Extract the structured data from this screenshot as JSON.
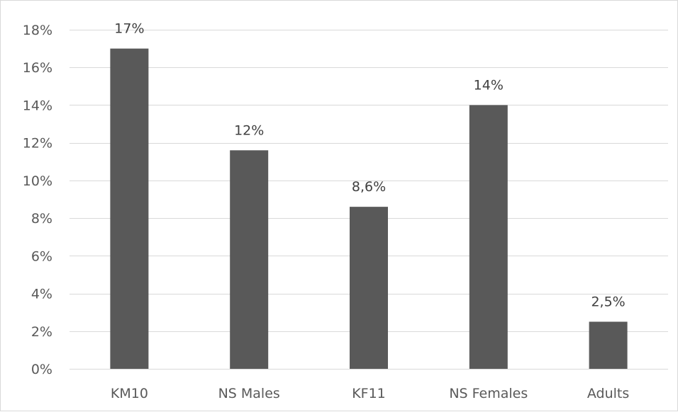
{
  "chart_data": {
    "type": "bar",
    "categories": [
      "KM10",
      "NS Males",
      "KF11",
      "NS Females",
      "Adults"
    ],
    "values": [
      17,
      11.6,
      8.6,
      14,
      2.5
    ],
    "data_labels": [
      "17%",
      "12%",
      "8,6%",
      "14%",
      "2,5%"
    ],
    "ylim": [
      0,
      18
    ],
    "yticks": [
      0,
      2,
      4,
      6,
      8,
      10,
      12,
      14,
      16,
      18
    ],
    "ytick_labels": [
      "0%",
      "2%",
      "4%",
      "6%",
      "8%",
      "10%",
      "12%",
      "14%",
      "16%",
      "18%"
    ],
    "title": "",
    "xlabel": "",
    "ylabel": "",
    "grid": true,
    "legend": false,
    "colors": {
      "bar": "#595959",
      "grid": "#d9d9d9",
      "axis_text": "#595959",
      "label_text": "#404040"
    }
  }
}
